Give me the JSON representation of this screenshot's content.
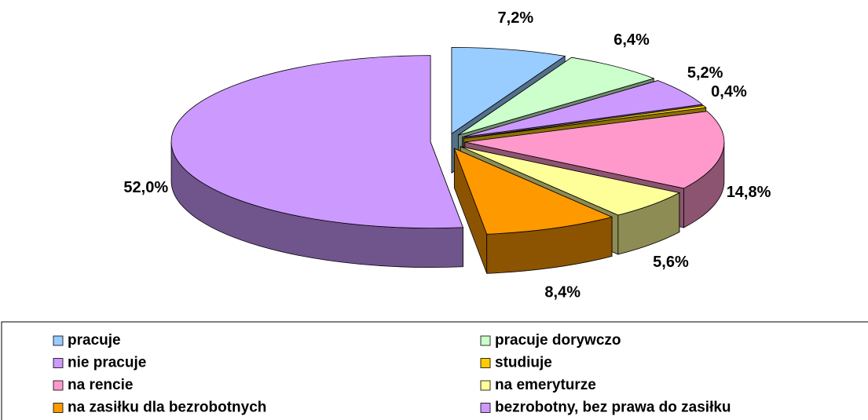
{
  "chart_data": {
    "type": "pie3d",
    "categories": [
      "pracuje",
      "pracuje dorywczo",
      "nie pracuje",
      "studiuje",
      "na rencie",
      "na emeryturze",
      "na zasiłku dla bezrobotnych",
      "bezrobotny, bez prawa do zasiłku"
    ],
    "values": [
      7.2,
      6.4,
      5.2,
      0.4,
      14.8,
      5.6,
      8.4,
      52.0
    ],
    "value_labels": [
      "7,2%",
      "6,4%",
      "5,2%",
      "0,4%",
      "14,8%",
      "5,6%",
      "8,4%",
      "52,0%"
    ],
    "colors": [
      "#99ccff",
      "#ccffcc",
      "#cc99ff",
      "#ffcc00",
      "#ff99cc",
      "#ffff99",
      "#ff9900",
      "#cc99ff"
    ],
    "legend": "bottom"
  }
}
